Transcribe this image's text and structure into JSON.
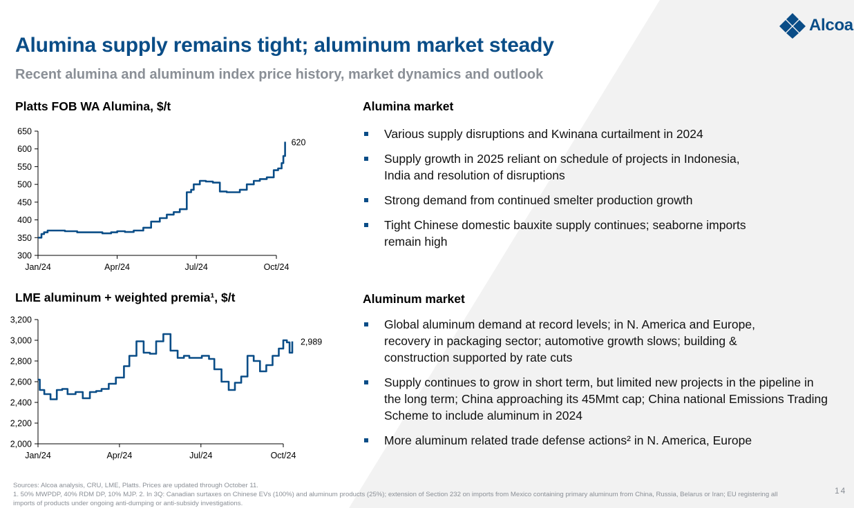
{
  "brand": {
    "name": "Alcoa",
    "color": "#0a4d87",
    "logo_icon": "diamond-logo-icon"
  },
  "title": "Alumina supply remains tight; aluminum market steady",
  "subtitle": "Recent alumina and aluminum index price history, market dynamics and outlook",
  "left_charts": {
    "alumina_title": "Platts FOB WA Alumina, $/t",
    "aluminum_title": "LME aluminum + weighted premia¹, $/t"
  },
  "alumina_market": {
    "title": "Alumina market",
    "bullets": [
      "Various supply disruptions and Kwinana curtailment in 2024",
      "Supply growth in 2025 reliant on schedule of projects in Indonesia, India and resolution of disruptions",
      "Strong demand from continued smelter production growth",
      "Tight Chinese domestic bauxite supply continues; seaborne imports remain high"
    ]
  },
  "aluminum_market": {
    "title": "Aluminum market",
    "bullets": [
      "Global aluminum demand at record levels; in N. America and Europe, recovery in packaging sector; automotive growth slows; building & construction supported by rate cuts",
      "Supply continues to grow in short term, but limited new projects in the pipeline in the long term; China approaching its 45Mmt cap; China national Emissions Trading Scheme to include aluminum in 2024",
      "More aluminum related trade defense actions² in N. America, Europe"
    ]
  },
  "footnotes": {
    "sources": "Sources: Alcoa analysis, CRU, LME, Platts. Prices are updated through October 11.",
    "notes": "1. 50% MWPDP, 40% RDM DP, 10% MJP. 2. In 3Q: Canadian surtaxes on Chinese EVs (100%) and aluminum products (25%); extension of Section 232 on imports from Mexico containing primary aluminum from China, Russia, Belarus or Iran; EU registering all imports of products under ongoing anti-dumping or anti-subsidy investigations."
  },
  "page_number": "14",
  "chart_data": [
    {
      "type": "line",
      "title": "Platts FOB WA Alumina, $/t",
      "line_color": "#0a4d87",
      "x_ticks": [
        "Jan/24",
        "Apr/24",
        "Jul/24",
        "Oct/24"
      ],
      "x_tick_dates": [
        "2024-01-01",
        "2024-04-01",
        "2024-07-01",
        "2024-10-01"
      ],
      "y_ticks": [
        "300",
        "350",
        "400",
        "450",
        "500",
        "550",
        "600",
        "650"
      ],
      "ylim": [
        300,
        650
      ],
      "end_label": "620",
      "series": [
        {
          "x": [
            "2024-01-01",
            "2024-01-05",
            "2024-01-08",
            "2024-01-12",
            "2024-01-20",
            "2024-02-01",
            "2024-02-15",
            "2024-03-01",
            "2024-03-15",
            "2024-03-25",
            "2024-04-01",
            "2024-04-10",
            "2024-04-20",
            "2024-05-01",
            "2024-05-10",
            "2024-05-20",
            "2024-05-28",
            "2024-06-05",
            "2024-06-12",
            "2024-06-20",
            "2024-06-25",
            "2024-06-28",
            "2024-07-05",
            "2024-07-12",
            "2024-07-20",
            "2024-07-28",
            "2024-08-05",
            "2024-08-12",
            "2024-08-20",
            "2024-08-28",
            "2024-09-05",
            "2024-09-12",
            "2024-09-20",
            "2024-09-28",
            "2024-10-03",
            "2024-10-07",
            "2024-10-09",
            "2024-10-11"
          ],
          "y": [
            350,
            360,
            365,
            370,
            370,
            368,
            365,
            365,
            362,
            365,
            368,
            366,
            370,
            378,
            395,
            405,
            415,
            422,
            430,
            478,
            485,
            500,
            510,
            508,
            505,
            480,
            478,
            478,
            485,
            500,
            510,
            515,
            520,
            540,
            545,
            560,
            580,
            620
          ]
        }
      ]
    },
    {
      "type": "line",
      "title": "LME aluminum + weighted premia¹, $/t",
      "line_color": "#0a4d87",
      "x_ticks": [
        "Jan/24",
        "Apr/24",
        "Jul/24",
        "Oct/24"
      ],
      "x_tick_dates": [
        "2024-01-01",
        "2024-04-01",
        "2024-07-01",
        "2024-10-01"
      ],
      "y_ticks": [
        "2,000",
        "2,200",
        "2,400",
        "2,600",
        "2,800",
        "3,000",
        "3,200"
      ],
      "ylim": [
        2000,
        3200
      ],
      "end_label": "2,989",
      "series": [
        {
          "x": [
            "2024-01-01",
            "2024-01-03",
            "2024-01-08",
            "2024-01-15",
            "2024-01-22",
            "2024-01-28",
            "2024-02-03",
            "2024-02-12",
            "2024-02-20",
            "2024-02-28",
            "2024-03-06",
            "2024-03-12",
            "2024-03-20",
            "2024-03-28",
            "2024-04-06",
            "2024-04-12",
            "2024-04-20",
            "2024-04-28",
            "2024-05-05",
            "2024-05-12",
            "2024-05-20",
            "2024-05-28",
            "2024-06-05",
            "2024-06-12",
            "2024-06-18",
            "2024-06-25",
            "2024-07-02",
            "2024-07-10",
            "2024-07-16",
            "2024-07-24",
            "2024-08-01",
            "2024-08-08",
            "2024-08-15",
            "2024-08-22",
            "2024-08-29",
            "2024-09-05",
            "2024-09-12",
            "2024-09-19",
            "2024-09-26",
            "2024-10-01",
            "2024-10-05",
            "2024-10-08",
            "2024-10-11"
          ],
          "y": [
            2620,
            2520,
            2480,
            2430,
            2520,
            2530,
            2480,
            2500,
            2440,
            2500,
            2510,
            2530,
            2580,
            2640,
            2750,
            2850,
            2990,
            2880,
            2870,
            2990,
            3060,
            2900,
            2830,
            2850,
            2830,
            2830,
            2850,
            2820,
            2720,
            2600,
            2520,
            2590,
            2650,
            2850,
            2800,
            2700,
            2760,
            2850,
            2920,
            3000,
            2980,
            2880,
            2989
          ]
        }
      ]
    }
  ]
}
